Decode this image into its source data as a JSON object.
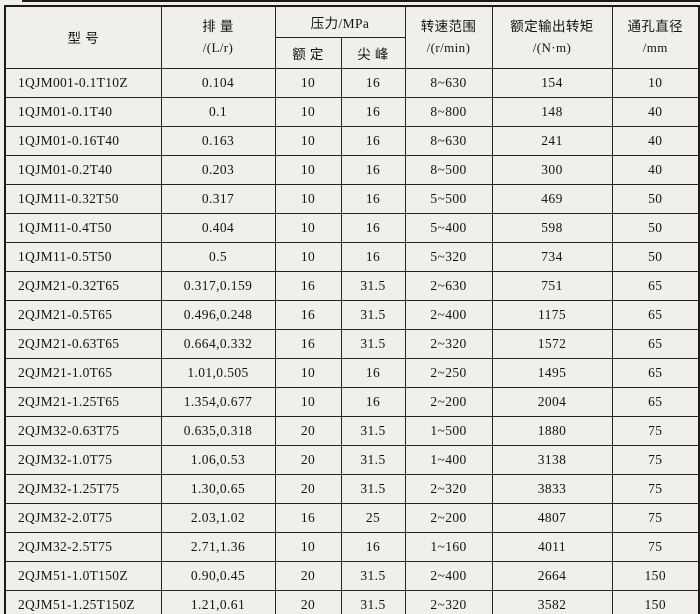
{
  "page": {
    "background": "#f1efea",
    "border_color": "#26231c",
    "text_color": "#15130f"
  },
  "table": {
    "header": {
      "model": {
        "line1": "型    号"
      },
      "displacement": {
        "line1": "排  量",
        "line2": "/(L/r)"
      },
      "pressure": {
        "title": "压力/MPa",
        "rated": "额  定",
        "peak": "尖  峰"
      },
      "speed": {
        "line1": "转速范围",
        "line2": "/(r/min)"
      },
      "torque": {
        "line1": "额定输出转矩",
        "line2": "/(N·m)"
      },
      "bore": {
        "line1": "通孔直径",
        "line2": "/mm"
      }
    },
    "rows": [
      {
        "model": "1QJM001-0.1T10Z",
        "displacement": "0.104",
        "rated": "10",
        "peak": "16",
        "speed": "8~630",
        "torque": "154",
        "bore": "10"
      },
      {
        "model": "1QJM01-0.1T40",
        "displacement": "0.1",
        "rated": "10",
        "peak": "16",
        "speed": "8~800",
        "torque": "148",
        "bore": "40"
      },
      {
        "model": "1QJM01-0.16T40",
        "displacement": "0.163",
        "rated": "10",
        "peak": "16",
        "speed": "8~630",
        "torque": "241",
        "bore": "40"
      },
      {
        "model": "1QJM01-0.2T40",
        "displacement": "0.203",
        "rated": "10",
        "peak": "16",
        "speed": "8~500",
        "torque": "300",
        "bore": "40"
      },
      {
        "model": "1QJM11-0.32T50",
        "displacement": "0.317",
        "rated": "10",
        "peak": "16",
        "speed": "5~500",
        "torque": "469",
        "bore": "50"
      },
      {
        "model": "1QJM11-0.4T50",
        "displacement": "0.404",
        "rated": "10",
        "peak": "16",
        "speed": "5~400",
        "torque": "598",
        "bore": "50"
      },
      {
        "model": "1QJM11-0.5T50",
        "displacement": "0.5",
        "rated": "10",
        "peak": "16",
        "speed": "5~320",
        "torque": "734",
        "bore": "50"
      },
      {
        "model": "2QJM21-0.32T65",
        "displacement": "0.317,0.159",
        "rated": "16",
        "peak": "31.5",
        "speed": "2~630",
        "torque": "751",
        "bore": "65"
      },
      {
        "model": "2QJM21-0.5T65",
        "displacement": "0.496,0.248",
        "rated": "16",
        "peak": "31.5",
        "speed": "2~400",
        "torque": "1175",
        "bore": "65"
      },
      {
        "model": "2QJM21-0.63T65",
        "displacement": "0.664,0.332",
        "rated": "16",
        "peak": "31.5",
        "speed": "2~320",
        "torque": "1572",
        "bore": "65"
      },
      {
        "model": "2QJM21-1.0T65",
        "displacement": "1.01,0.505",
        "rated": "10",
        "peak": "16",
        "speed": "2~250",
        "torque": "1495",
        "bore": "65"
      },
      {
        "model": "2QJM21-1.25T65",
        "displacement": "1.354,0.677",
        "rated": "10",
        "peak": "16",
        "speed": "2~200",
        "torque": "2004",
        "bore": "65"
      },
      {
        "model": "2QJM32-0.63T75",
        "displacement": "0.635,0.318",
        "rated": "20",
        "peak": "31.5",
        "speed": "1~500",
        "torque": "1880",
        "bore": "75"
      },
      {
        "model": "2QJM32-1.0T75",
        "displacement": "1.06,0.53",
        "rated": "20",
        "peak": "31.5",
        "speed": "1~400",
        "torque": "3138",
        "bore": "75"
      },
      {
        "model": "2QJM32-1.25T75",
        "displacement": "1.30,0.65",
        "rated": "20",
        "peak": "31.5",
        "speed": "2~320",
        "torque": "3833",
        "bore": "75"
      },
      {
        "model": "2QJM32-2.0T75",
        "displacement": "2.03,1.02",
        "rated": "16",
        "peak": "25",
        "speed": "2~200",
        "torque": "4807",
        "bore": "75"
      },
      {
        "model": "2QJM32-2.5T75",
        "displacement": "2.71,1.36",
        "rated": "10",
        "peak": "16",
        "speed": "1~160",
        "torque": "4011",
        "bore": "75"
      },
      {
        "model": "2QJM51-1.0T150Z",
        "displacement": "0.90,0.45",
        "rated": "20",
        "peak": "31.5",
        "speed": "2~400",
        "torque": "2664",
        "bore": "150"
      },
      {
        "model": "2QJM51-1.25T150Z",
        "displacement": "1.21,0.61",
        "rated": "20",
        "peak": "31.5",
        "speed": "2~320",
        "torque": "3582",
        "bore": "150"
      }
    ]
  }
}
